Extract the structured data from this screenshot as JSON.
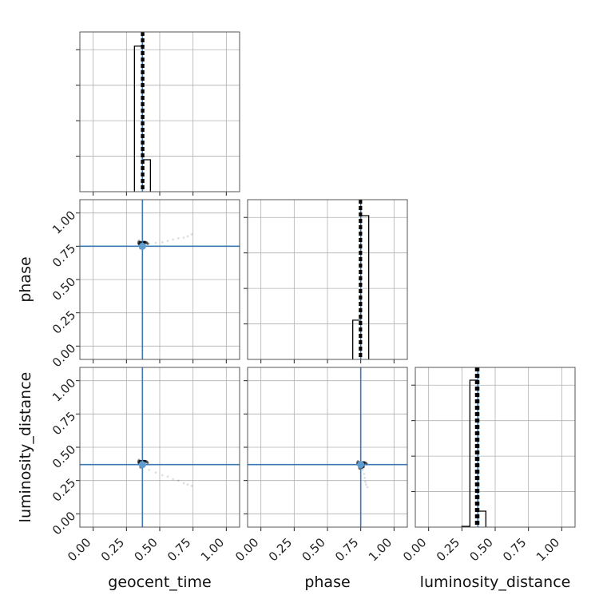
{
  "chart_data": {
    "type": "corner",
    "parameters": [
      "geocent_time",
      "phase",
      "luminosity_distance"
    ],
    "axis_range": [
      -0.1,
      1.1
    ],
    "tick_values": [
      0.0,
      0.25,
      0.5,
      0.75,
      1.0
    ],
    "tick_labels": [
      "0.00",
      "0.25",
      "0.50",
      "0.75",
      "1.00"
    ],
    "grid": true,
    "colors": {
      "histogram": "#000000",
      "truth": "#3b78b5",
      "samples": "#000000"
    },
    "truths": {
      "geocent_time": 0.37,
      "phase": 0.75,
      "luminosity_distance": 0.37
    },
    "quantiles": {
      "geocent_time": [
        0.365,
        0.372,
        0.378
      ],
      "phase": [
        0.742,
        0.748,
        0.754
      ],
      "luminosity_distance": [
        0.355,
        0.365,
        0.375
      ]
    },
    "histograms": {
      "geocent_time": {
        "edges": [
          0.31,
          0.37,
          0.43
        ],
        "counts": [
          0.82,
          0.18
        ],
        "ymax": 0.9
      },
      "phase": {
        "edges": [
          0.69,
          0.75,
          0.81
        ],
        "counts": [
          0.27,
          0.99
        ],
        "ymax": 1.1
      },
      "luminosity_distance": {
        "edges": [
          0.25,
          0.31,
          0.37,
          0.43
        ],
        "counts": [
          0.005,
          0.92,
          0.1
        ],
        "ymax": 1.0
      }
    },
    "scatter": [
      {
        "x_param": "geocent_time",
        "y_param": "phase",
        "core": [
          0.37,
          0.765
        ],
        "tail": [
          [
            0.42,
            0.77
          ],
          [
            0.47,
            0.775
          ],
          [
            0.52,
            0.78
          ],
          [
            0.56,
            0.79
          ],
          [
            0.6,
            0.8
          ],
          [
            0.64,
            0.81
          ],
          [
            0.68,
            0.815
          ],
          [
            0.71,
            0.825
          ],
          [
            0.74,
            0.84
          ]
        ]
      },
      {
        "x_param": "geocent_time",
        "y_param": "luminosity_distance",
        "core": [
          0.37,
          0.38
        ],
        "tail": [
          [
            0.42,
            0.33
          ],
          [
            0.47,
            0.31
          ],
          [
            0.52,
            0.29
          ],
          [
            0.56,
            0.28
          ],
          [
            0.6,
            0.26
          ],
          [
            0.64,
            0.25
          ],
          [
            0.68,
            0.23
          ],
          [
            0.71,
            0.22
          ],
          [
            0.74,
            0.21
          ]
        ]
      },
      {
        "x_param": "phase",
        "y_param": "luminosity_distance",
        "core": [
          0.755,
          0.37
        ],
        "tail": [
          [
            0.765,
            0.33
          ],
          [
            0.775,
            0.3
          ],
          [
            0.78,
            0.27
          ],
          [
            0.785,
            0.24
          ],
          [
            0.79,
            0.22
          ],
          [
            0.8,
            0.2
          ]
        ]
      }
    ]
  }
}
